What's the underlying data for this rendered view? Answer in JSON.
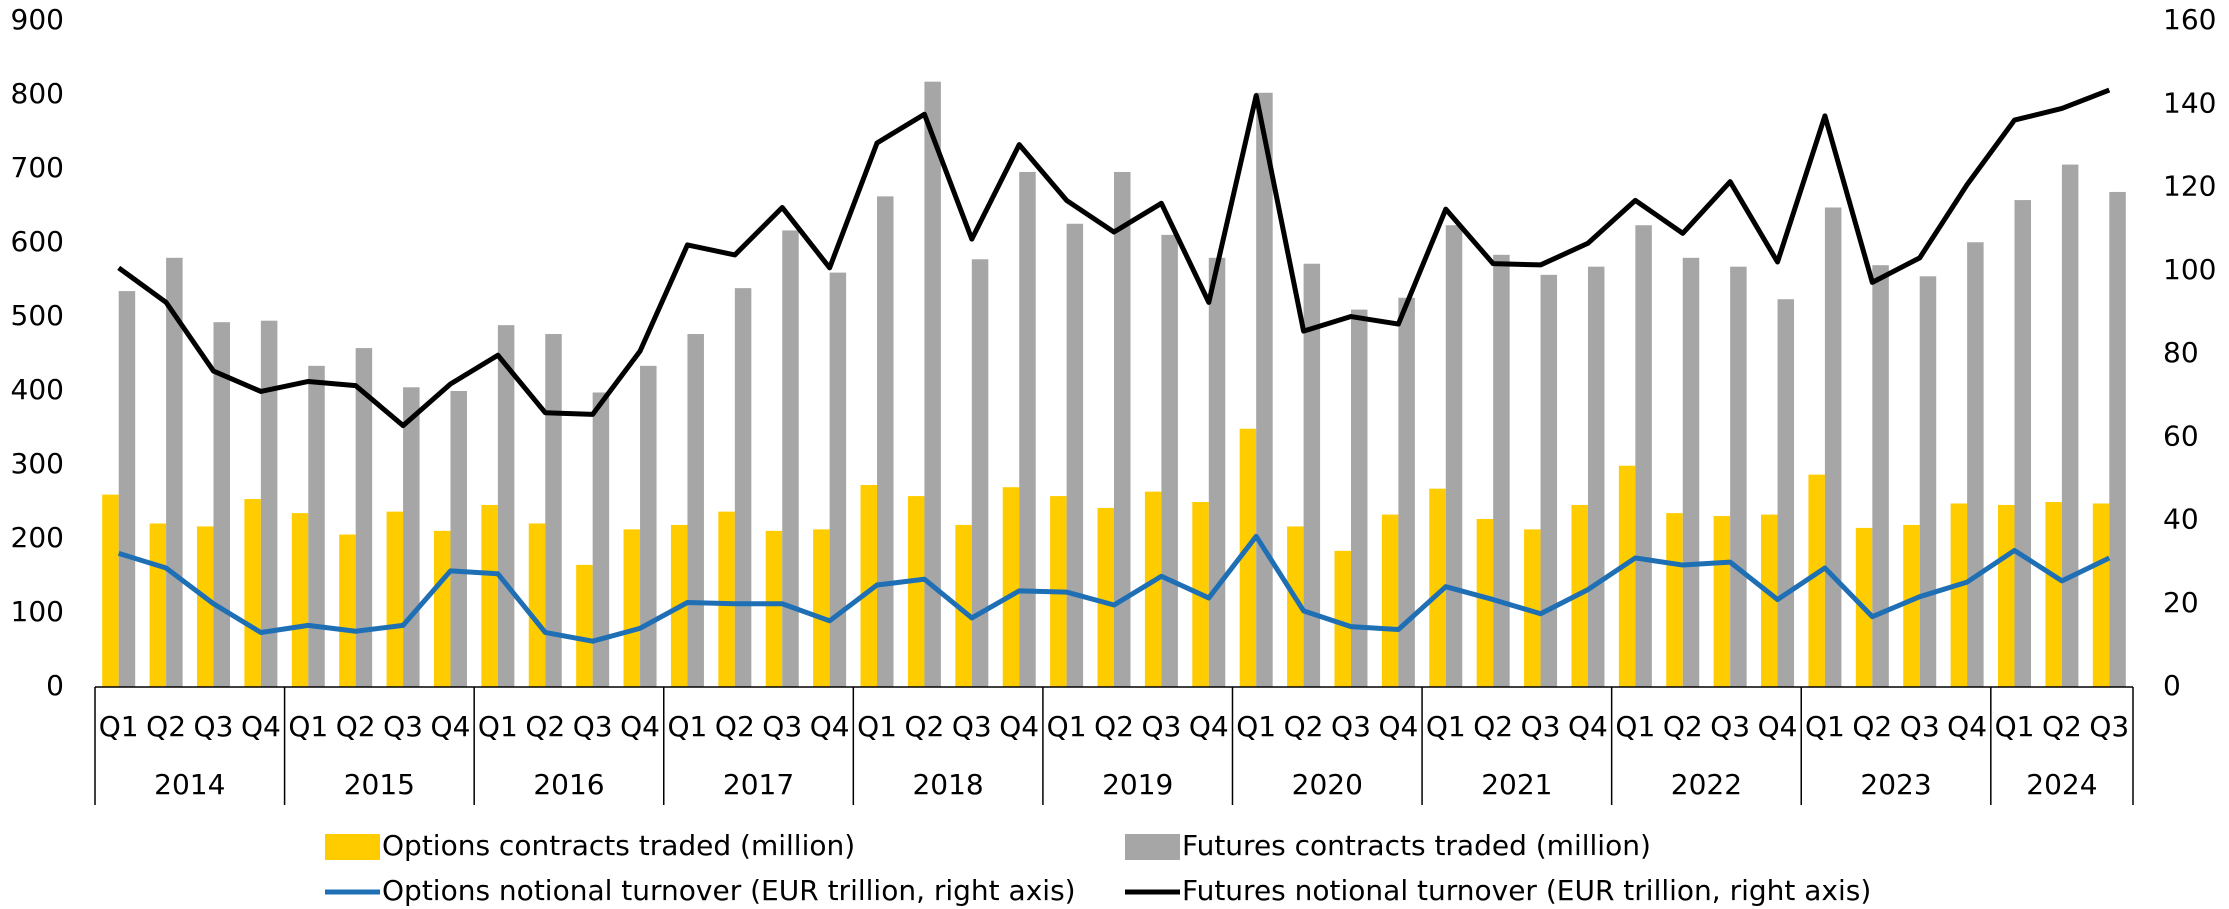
{
  "chart_data": {
    "type": "bar_line",
    "categories": [
      "Q1",
      "Q2",
      "Q3",
      "Q4",
      "Q1",
      "Q2",
      "Q3",
      "Q4",
      "Q1",
      "Q2",
      "Q3",
      "Q4",
      "Q1",
      "Q2",
      "Q3",
      "Q4",
      "Q1",
      "Q2",
      "Q3",
      "Q4",
      "Q1",
      "Q2",
      "Q3",
      "Q4",
      "Q1",
      "Q2",
      "Q3",
      "Q4",
      "Q1",
      "Q2",
      "Q3",
      "Q4",
      "Q1",
      "Q2",
      "Q3",
      "Q4",
      "Q1",
      "Q2",
      "Q3",
      "Q4",
      "Q1",
      "Q2",
      "Q3"
    ],
    "years": [
      "2014",
      "2015",
      "2016",
      "2017",
      "2018",
      "2019",
      "2020",
      "2021",
      "2022",
      "2023",
      "2024"
    ],
    "series": [
      {
        "name": "Options contracts traded (million)",
        "type": "bar",
        "color": "#FFCC00",
        "values": [
          260,
          221,
          217,
          254,
          235,
          206,
          237,
          211,
          246,
          221,
          165,
          213,
          219,
          237,
          211,
          213,
          273,
          258,
          219,
          270,
          258,
          242,
          264,
          250,
          349,
          217,
          184,
          233,
          268,
          227,
          213,
          246,
          299,
          235,
          231,
          233,
          287,
          215,
          219,
          248,
          246,
          250,
          248
        ]
      },
      {
        "name": "Futures contracts traded (million)",
        "type": "bar",
        "color": "#A6A6A6",
        "values": [
          535,
          580,
          493,
          495,
          434,
          458,
          405,
          400,
          489,
          477,
          398,
          434,
          477,
          539,
          617,
          560,
          663,
          818,
          578,
          696,
          626,
          696,
          611,
          580,
          803,
          572,
          510,
          526,
          624,
          584,
          557,
          568,
          624,
          580,
          568,
          524,
          648,
          570,
          555,
          601,
          658,
          706,
          669
        ]
      },
      {
        "name": "Options notional turnover (EUR trillion, right axis)",
        "type": "line",
        "axis": "y2",
        "color": "#1F6FB5",
        "values": [
          32.1,
          28.6,
          20.0,
          13.1,
          14.8,
          13.4,
          14.8,
          27.9,
          27.2,
          13.1,
          11.0,
          14.1,
          20.3,
          20.0,
          20.0,
          15.9,
          24.5,
          25.9,
          16.6,
          23.1,
          22.8,
          19.7,
          26.6,
          21.4,
          36.2,
          18.3,
          14.5,
          13.8,
          24.1,
          21.0,
          17.6,
          23.4,
          31.0,
          29.3,
          30.0,
          21.0,
          28.6,
          16.9,
          21.7,
          25.2,
          32.8,
          25.5,
          31.0
        ]
      },
      {
        "name": "Futures notional turnover (EUR trillion, right axis)",
        "type": "line",
        "axis": "y2",
        "color": "#000000",
        "values": [
          100.7,
          92.4,
          75.9,
          71.0,
          73.4,
          72.4,
          62.8,
          72.8,
          79.7,
          65.9,
          65.5,
          80.7,
          106.2,
          103.8,
          115.2,
          100.7,
          130.7,
          137.6,
          107.6,
          130.3,
          116.9,
          109.3,
          116.2,
          92.4,
          142.1,
          85.5,
          89.0,
          87.2,
          114.8,
          101.7,
          101.4,
          106.6,
          116.9,
          109.0,
          121.4,
          102.1,
          137.2,
          97.2,
          103.1,
          120.7,
          136.2,
          139.0,
          143.4
        ]
      }
    ],
    "ylim": [
      0,
      900
    ],
    "yticks": [
      0,
      100,
      200,
      300,
      400,
      500,
      600,
      700,
      800,
      900
    ],
    "y2lim": [
      0,
      160
    ],
    "y2ticks": [
      0,
      20,
      40,
      60,
      80,
      100,
      120,
      140,
      160
    ]
  }
}
